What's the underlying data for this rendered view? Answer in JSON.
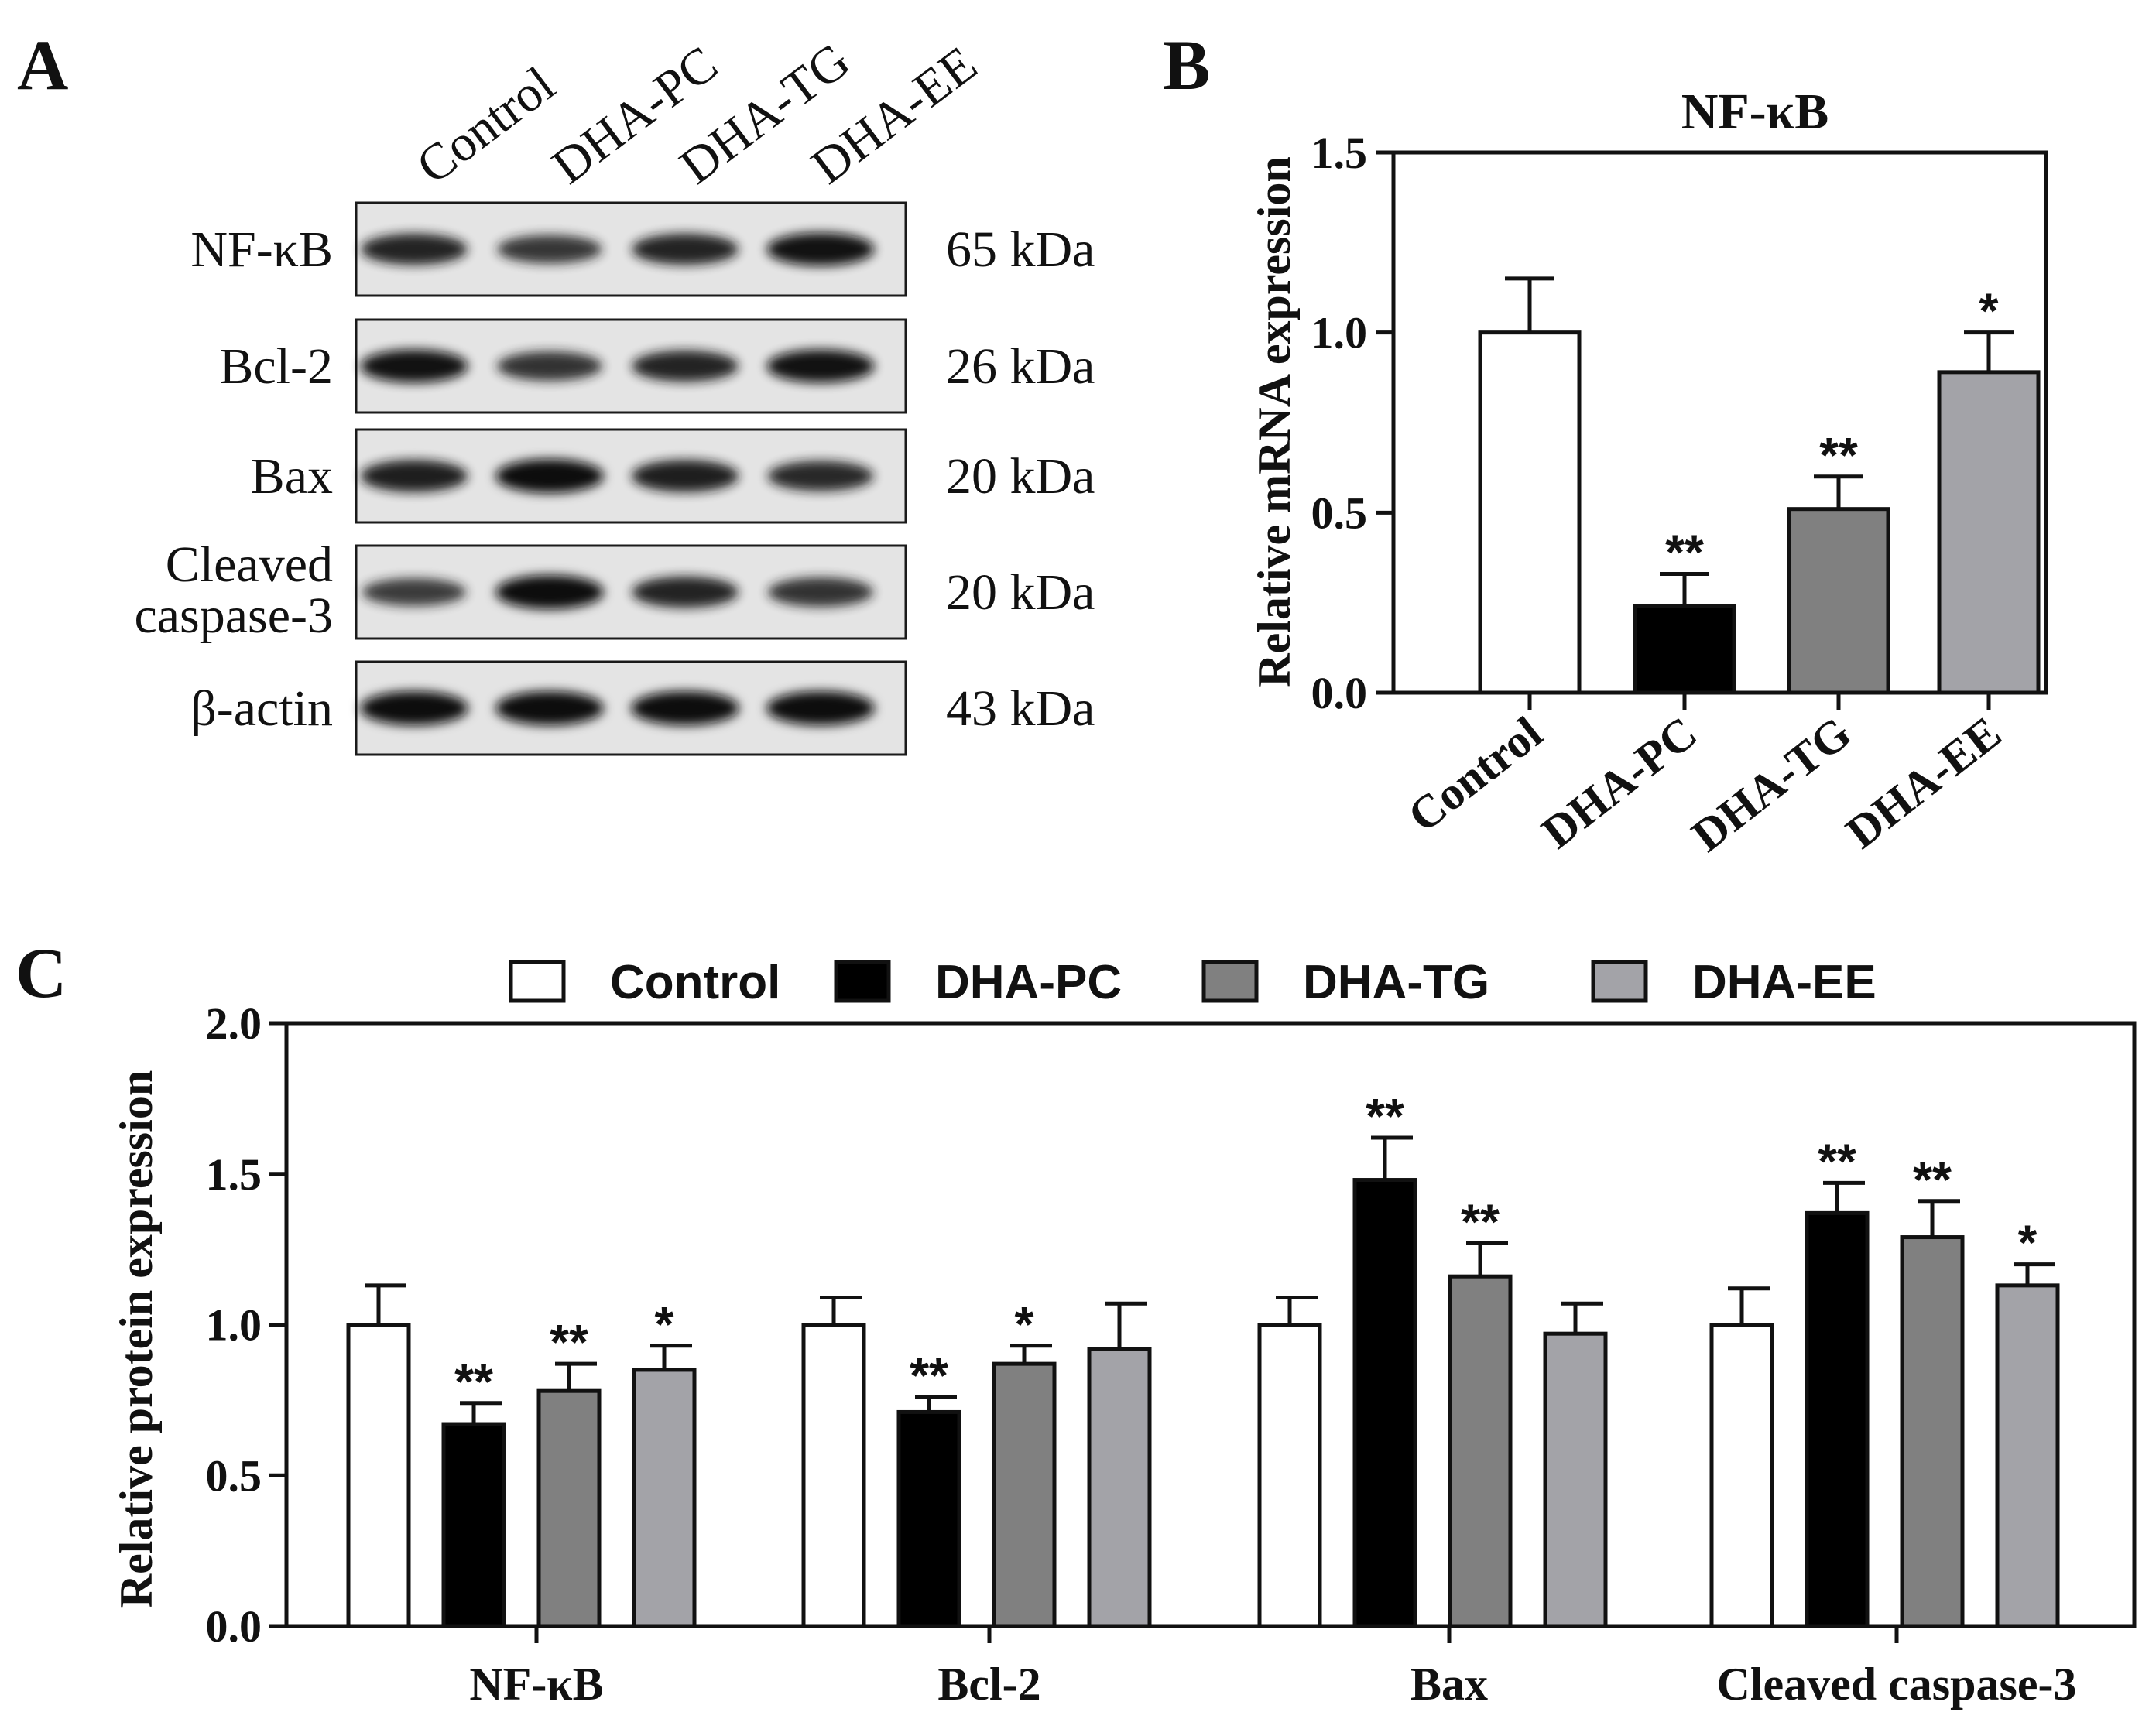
{
  "panels": {
    "a": "A",
    "b": "B",
    "c": "C"
  },
  "groups": [
    "Control",
    "DHA-PC",
    "DHA-TG",
    "DHA-EE"
  ],
  "colors": {
    "Control": "#ffffff",
    "DHA-PC": "#000000",
    "DHA-TG": "#808080",
    "DHA-EE": "#a3a3a8"
  },
  "blot": {
    "rows": [
      {
        "label": "NF-κB",
        "kda": "65 kDa",
        "intensity": [
          0.85,
          0.7,
          0.85,
          0.95
        ]
      },
      {
        "label": "Bcl-2",
        "kda": "26 kDa",
        "intensity": [
          0.95,
          0.75,
          0.85,
          0.95
        ]
      },
      {
        "label": "Bax",
        "kda": "20 kDa",
        "intensity": [
          0.9,
          1.0,
          0.9,
          0.8
        ]
      },
      {
        "label_lines": [
          "Cleaved",
          "caspase-3"
        ],
        "kda": "20 kDa",
        "intensity": [
          0.65,
          1.0,
          0.85,
          0.75
        ]
      },
      {
        "label": "β-actin",
        "kda": "43 kDa",
        "intensity": [
          1.0,
          1.0,
          1.0,
          1.0
        ]
      }
    ]
  },
  "chart_data": [
    {
      "type": "bar",
      "title": "NF-κB",
      "xlabel": "",
      "ylabel": "Relative mRNA expression",
      "ylim": [
        0,
        1.5
      ],
      "yticks": [
        "0.0",
        "0.5",
        "1.0",
        "1.5"
      ],
      "categories": [
        "Control",
        "DHA-PC",
        "DHA-TG",
        "DHA-EE"
      ],
      "values": [
        1.0,
        0.24,
        0.51,
        0.89
      ],
      "errors": [
        0.15,
        0.09,
        0.09,
        0.11
      ],
      "significance": [
        "",
        "**",
        "**",
        "*"
      ]
    },
    {
      "type": "bar",
      "title": "",
      "xlabel": "",
      "ylabel": "Relative protein expression",
      "ylim": [
        0,
        2.0
      ],
      "yticks": [
        "0.0",
        "0.5",
        "1.0",
        "1.5",
        "2.0"
      ],
      "legend_position": "top",
      "categories": [
        "NF-κB",
        "Bcl-2",
        "Bax",
        "Cleaved caspase-3"
      ],
      "series": [
        {
          "name": "Control",
          "values": [
            1.0,
            1.0,
            1.0,
            1.0
          ],
          "errors": [
            0.13,
            0.09,
            0.09,
            0.12
          ],
          "significance": [
            "",
            "",
            "",
            ""
          ]
        },
        {
          "name": "DHA-PC",
          "values": [
            0.67,
            0.71,
            1.48,
            1.37
          ],
          "errors": [
            0.07,
            0.05,
            0.14,
            0.1
          ],
          "significance": [
            "**",
            "**",
            "**",
            "**"
          ]
        },
        {
          "name": "DHA-TG",
          "values": [
            0.78,
            0.87,
            1.16,
            1.29
          ],
          "errors": [
            0.09,
            0.06,
            0.11,
            0.12
          ],
          "significance": [
            "**",
            "*",
            "**",
            "**"
          ]
        },
        {
          "name": "DHA-EE",
          "values": [
            0.85,
            0.92,
            0.97,
            1.13
          ],
          "errors": [
            0.08,
            0.15,
            0.1,
            0.07
          ],
          "significance": [
            "*",
            "",
            "",
            "*"
          ]
        }
      ]
    }
  ]
}
